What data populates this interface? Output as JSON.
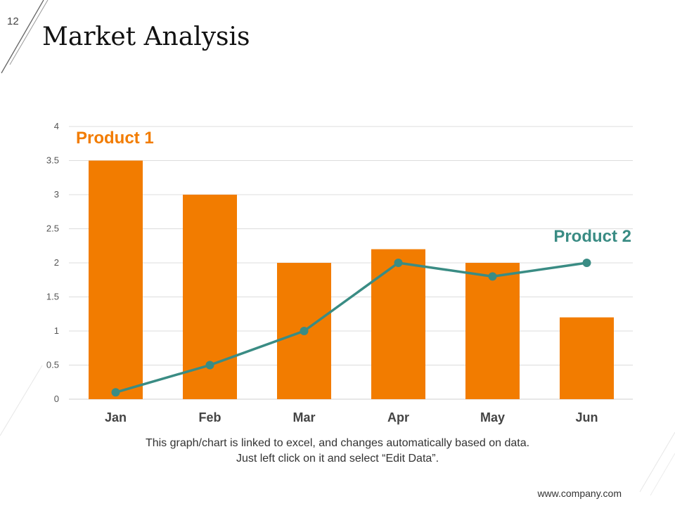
{
  "slide": {
    "number": "12",
    "title": "Market Analysis",
    "caption_line1": "This graph/chart is linked to excel, and changes automatically based on data.",
    "caption_line2": "Just left click on it and select “Edit Data”.",
    "footer_url": "www.company.com"
  },
  "chart_data": {
    "type": "bar+line",
    "categories": [
      "Jan",
      "Feb",
      "Mar",
      "Apr",
      "May",
      "Jun"
    ],
    "series": [
      {
        "name": "Product 1",
        "type": "bar",
        "color": "#f27c00",
        "values": [
          3.5,
          3.0,
          2.0,
          2.2,
          2.0,
          1.2
        ]
      },
      {
        "name": "Product 2",
        "type": "line",
        "color": "#3a8c84",
        "values": [
          0.1,
          0.5,
          1.0,
          2.0,
          1.8,
          2.0
        ]
      }
    ],
    "ylim": [
      0,
      4
    ],
    "yticks": [
      "0",
      "0.5",
      "1",
      "1.5",
      "2",
      "2.5",
      "3",
      "3.5",
      "4"
    ],
    "grid": true,
    "title": "",
    "xlabel": "",
    "ylabel": ""
  }
}
